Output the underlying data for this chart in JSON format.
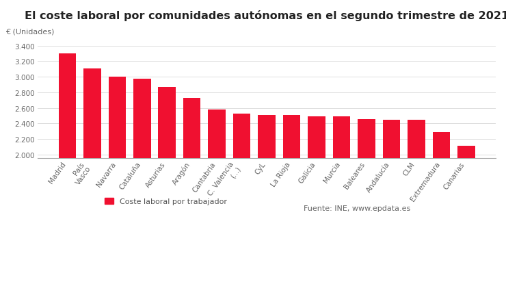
{
  "title": "El coste laboral por comunidades autónomas en el segundo trimestre de 2021",
  "ylabel": "€ (Unidades)",
  "categories": [
    "Madrid",
    "País\nVasco",
    "Navarra",
    "Cataluña",
    "Asturias",
    "Aragón",
    "Cantabria",
    "C. Valencia\n(...)",
    "CyL",
    "La Rioja",
    "Galicia",
    "Murcia",
    "Baleares",
    "Andalucía",
    "CLM",
    "Extremadura",
    "Canarias"
  ],
  "values": [
    3300,
    3110,
    3000,
    2975,
    2870,
    2730,
    2580,
    2525,
    2510,
    2505,
    2495,
    2495,
    2455,
    2445,
    2445,
    2285,
    2110
  ],
  "bar_color": "#f01030",
  "ylim_min": 1950,
  "ylim_max": 3480,
  "yticks": [
    2000,
    2200,
    2400,
    2600,
    2800,
    3000,
    3200,
    3400
  ],
  "ytick_labels": [
    "2.000",
    "2.200",
    "2.400",
    "2.600",
    "2.800",
    "3.000",
    "3.200",
    "3.400"
  ],
  "legend_label": "Coste laboral por trabajador",
  "source_text": "Fuente: INE, www.epdata.es",
  "background_color": "#ffffff",
  "grid_color": "#dddddd",
  "title_fontsize": 11.5,
  "axis_label_fontsize": 8,
  "tick_fontsize": 7.5,
  "legend_fontsize": 8
}
